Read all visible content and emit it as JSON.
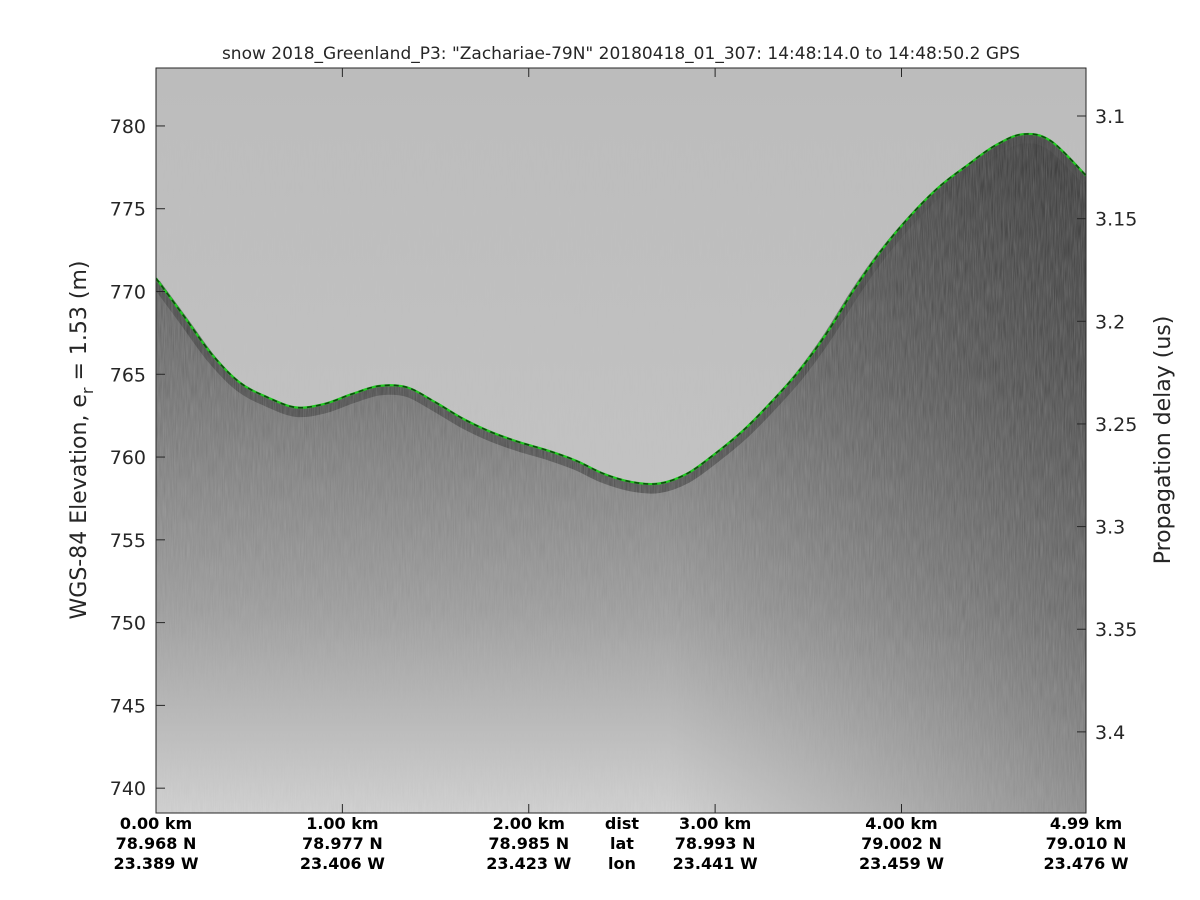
{
  "chart_data": {
    "type": "line",
    "title": "snow 2018_Greenland_P3: \"Zachariae-79N\"  20180418_01_307: 14:48:14.0 to 14:48:50.2 GPS",
    "ylabel_left_main": "WGS-84 Elevation, e",
    "ylabel_left_sub": "r",
    "ylabel_left_rest": " = 1.53 (m)",
    "ylabel_right": "Propagation delay (us)",
    "ylim_left": [
      738.5,
      783.5
    ],
    "left_ticks": [
      780,
      775,
      770,
      765,
      760,
      755,
      750,
      745,
      740
    ],
    "right_ticks": [
      {
        "label": "3.1",
        "elev": 780.6
      },
      {
        "label": "3.15",
        "elev": 774.4
      },
      {
        "label": "3.2",
        "elev": 768.2
      },
      {
        "label": "3.25",
        "elev": 762.0
      },
      {
        "label": "3.3",
        "elev": 755.8
      },
      {
        "label": "3.35",
        "elev": 749.6
      },
      {
        "label": "3.4",
        "elev": 743.4
      }
    ],
    "xlim": [
      0,
      4.99
    ],
    "x_ticks": [
      {
        "dist_km": 0.0,
        "dist": "0.00 km",
        "lat": "78.968 N",
        "lon": "23.389 W"
      },
      {
        "dist_km": 1.0,
        "dist": "1.00 km",
        "lat": "78.977 N",
        "lon": "23.406 W"
      },
      {
        "dist_km": 2.0,
        "dist": "2.00 km",
        "lat": "78.985 N",
        "lon": "23.423 W"
      },
      {
        "dist_km": 3.0,
        "dist": "3.00 km",
        "lat": "78.993 N",
        "lon": "23.441 W"
      },
      {
        "dist_km": 4.0,
        "dist": "4.00 km",
        "lat": "79.002 N",
        "lon": "23.459 W"
      },
      {
        "dist_km": 4.99,
        "dist": "4.99 km",
        "lat": "79.010 N",
        "lon": "23.476 W"
      }
    ],
    "row_labels": {
      "dist": "dist",
      "lat": "lat",
      "lon": "lon",
      "dist_km": 2.5
    },
    "surface": {
      "x": [
        0.0,
        0.15,
        0.3,
        0.45,
        0.6,
        0.75,
        0.9,
        1.05,
        1.2,
        1.35,
        1.5,
        1.65,
        1.8,
        1.95,
        2.1,
        2.25,
        2.4,
        2.55,
        2.7,
        2.85,
        3.0,
        3.15,
        3.3,
        3.45,
        3.6,
        3.75,
        3.9,
        4.05,
        4.2,
        4.35,
        4.5,
        4.65,
        4.8,
        4.99
      ],
      "y": [
        770.8,
        768.5,
        766.2,
        764.5,
        763.6,
        763.0,
        763.2,
        763.8,
        764.3,
        764.2,
        763.3,
        762.3,
        761.5,
        760.9,
        760.4,
        759.8,
        759.0,
        758.5,
        758.4,
        759.0,
        760.2,
        761.6,
        763.3,
        765.2,
        767.5,
        770.2,
        772.6,
        774.6,
        776.3,
        777.6,
        778.8,
        779.5,
        779.1,
        777.0
      ]
    },
    "colors": {
      "pick_line": "#22c922",
      "pick_dash": "#0d4a0d",
      "sky": "#c2c2c2",
      "firn": "#5e5e5e",
      "deep": "#d6d6d6"
    },
    "grid": false,
    "legend": "none"
  }
}
